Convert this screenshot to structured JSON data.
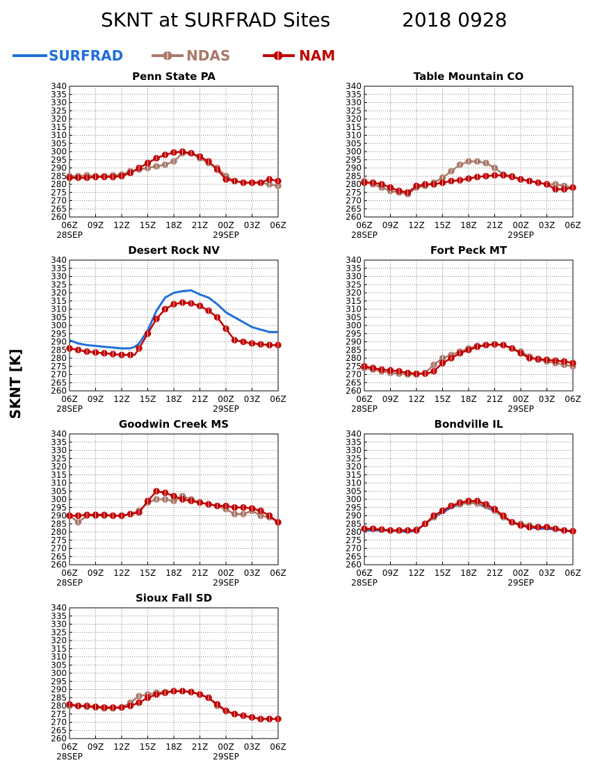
{
  "title": {
    "left": "SKNT at SURFRAD Sites",
    "right": "2018 0928"
  },
  "y_axis_label": "SKNT [K]",
  "legend": [
    {
      "label": "SURFRAD",
      "color": "#1f6fd8",
      "marker": false
    },
    {
      "label": "NDAS",
      "color": "#a9796a",
      "marker": true
    },
    {
      "label": "NAM",
      "color": "#c00000",
      "marker": true
    }
  ],
  "chart_data": [
    {
      "type": "line",
      "title": "Penn State PA",
      "ylim": [
        260,
        340
      ],
      "grid": true,
      "yticks": [
        "260",
        "265",
        "270",
        "275",
        "280",
        "285",
        "290",
        "295",
        "300",
        "305",
        "310",
        "315",
        "320",
        "325",
        "330",
        "335",
        "340"
      ],
      "xticks": [
        "06Z",
        "09Z",
        "12Z",
        "15Z",
        "18Z",
        "21Z",
        "00Z",
        "03Z",
        "06Z"
      ],
      "xdates": [
        "28SEP",
        "29SEP"
      ],
      "series": [
        {
          "name": "NDAS",
          "x": [
            0,
            1,
            2,
            3,
            4,
            5,
            6,
            7,
            8,
            9,
            10,
            11,
            12,
            13,
            14,
            15,
            16,
            17,
            18,
            19,
            20,
            21,
            22,
            23,
            24
          ],
          "y": [
            285,
            285,
            285.5,
            285,
            285,
            285.5,
            286,
            288,
            289,
            290,
            291,
            292,
            294,
            299,
            299,
            296,
            293,
            290,
            285,
            282,
            281,
            281,
            281,
            280,
            279
          ]
        },
        {
          "name": "NAM",
          "x": [
            0,
            1,
            2,
            3,
            4,
            5,
            6,
            7,
            8,
            9,
            10,
            11,
            12,
            13,
            14,
            15,
            16,
            17,
            18,
            19,
            20,
            21,
            22,
            23,
            24
          ],
          "y": [
            284,
            284,
            284,
            284.5,
            284.5,
            284.5,
            285,
            287,
            290,
            293,
            296,
            298,
            299.5,
            300,
            299,
            297,
            294,
            289,
            283,
            282,
            281,
            281,
            281,
            283,
            282
          ]
        }
      ]
    },
    {
      "type": "line",
      "title": "Table Mountain CO",
      "ylim": [
        260,
        340
      ],
      "grid": true,
      "yticks": [
        "260",
        "265",
        "270",
        "275",
        "280",
        "285",
        "290",
        "295",
        "300",
        "305",
        "310",
        "315",
        "320",
        "325",
        "330",
        "335",
        "340"
      ],
      "xticks": [
        "06Z",
        "09Z",
        "12Z",
        "15Z",
        "18Z",
        "21Z",
        "00Z",
        "03Z",
        "06Z"
      ],
      "xdates": [
        "28SEP",
        "29SEP"
      ],
      "series": [
        {
          "name": "NDAS",
          "x": [
            0,
            1,
            2,
            3,
            4,
            5,
            6,
            7,
            8,
            9,
            10,
            11,
            12,
            13,
            14,
            15,
            16,
            17,
            18,
            19,
            20,
            21,
            22,
            23,
            24
          ],
          "y": [
            282,
            280,
            278,
            276,
            275,
            274,
            278,
            279,
            281,
            284,
            288,
            292,
            294,
            294,
            293,
            290,
            286,
            285,
            283,
            282,
            281,
            280,
            280,
            279,
            278
          ]
        },
        {
          "name": "NAM",
          "x": [
            0,
            1,
            2,
            3,
            4,
            5,
            6,
            7,
            8,
            9,
            10,
            11,
            12,
            13,
            14,
            15,
            16,
            17,
            18,
            19,
            20,
            21,
            22,
            23,
            24
          ],
          "y": [
            281,
            281,
            280,
            278,
            276,
            275,
            279,
            280,
            280,
            281,
            282,
            282.5,
            283.5,
            284.5,
            285,
            285.5,
            285.5,
            284.5,
            283,
            282,
            281,
            280,
            277,
            277,
            278
          ]
        }
      ]
    },
    {
      "type": "line",
      "title": "Desert Rock NV",
      "ylim": [
        260,
        340
      ],
      "grid": true,
      "yticks": [
        "260",
        "265",
        "270",
        "275",
        "280",
        "285",
        "290",
        "295",
        "300",
        "305",
        "310",
        "315",
        "320",
        "325",
        "330",
        "335",
        "340"
      ],
      "xticks": [
        "06Z",
        "09Z",
        "12Z",
        "15Z",
        "18Z",
        "21Z",
        "00Z",
        "03Z",
        "06Z"
      ],
      "xdates": [
        "28SEP",
        "29SEP"
      ],
      "series": [
        {
          "name": "SURFRAD",
          "x": [
            0,
            1,
            2,
            3,
            4,
            5,
            6,
            7,
            7.5,
            8,
            9,
            10,
            11,
            12,
            13,
            14,
            15,
            16,
            17,
            18,
            19,
            20,
            21,
            22,
            23,
            24
          ],
          "y": [
            291,
            289,
            288,
            287.5,
            287,
            286.5,
            286,
            286,
            287,
            289,
            297,
            309,
            317,
            320,
            321,
            321.5,
            319,
            317,
            313,
            308,
            305,
            302,
            299,
            297.5,
            296,
            296
          ]
        },
        {
          "name": "NAM",
          "x": [
            0,
            1,
            2,
            3,
            4,
            5,
            6,
            7,
            7.5,
            8,
            9,
            10,
            11,
            12,
            13,
            14,
            15,
            16,
            17,
            18,
            19,
            20,
            21,
            22,
            23,
            24
          ],
          "y": [
            286,
            285,
            284,
            283.5,
            283,
            282.5,
            282,
            282,
            282,
            286,
            295,
            304,
            310,
            313,
            314,
            313.5,
            312,
            309,
            305,
            298,
            291,
            290,
            289,
            288.5,
            288,
            288
          ]
        }
      ]
    },
    {
      "type": "line",
      "title": "Fort Peck MT",
      "ylim": [
        260,
        340
      ],
      "grid": true,
      "yticks": [
        "260",
        "265",
        "270",
        "275",
        "280",
        "285",
        "290",
        "295",
        "300",
        "305",
        "310",
        "315",
        "320",
        "325",
        "330",
        "335",
        "340"
      ],
      "xticks": [
        "06Z",
        "09Z",
        "12Z",
        "15Z",
        "18Z",
        "21Z",
        "00Z",
        "03Z",
        "06Z"
      ],
      "xdates": [
        "28SEP",
        "29SEP"
      ],
      "series": [
        {
          "name": "NDAS",
          "x": [
            0,
            1,
            2,
            3,
            4,
            5,
            6,
            7,
            8,
            9,
            10,
            11,
            12,
            13,
            14,
            15,
            16,
            17,
            18,
            19,
            20,
            21,
            22,
            23,
            24
          ],
          "y": [
            274,
            273,
            272,
            271,
            270.5,
            270,
            270,
            271,
            276,
            280,
            282,
            284,
            286,
            287.5,
            288,
            288.5,
            288,
            286,
            284,
            281,
            279,
            278,
            277,
            276,
            275
          ]
        },
        {
          "name": "NAM",
          "x": [
            0,
            1,
            2,
            3,
            4,
            5,
            6,
            7,
            7.5,
            8,
            9,
            10,
            11,
            12,
            13,
            14,
            15,
            16,
            17,
            18,
            19,
            20,
            21,
            22,
            23,
            24
          ],
          "y": [
            275,
            274,
            273,
            272.5,
            272,
            271,
            270.5,
            270.5,
            271,
            272,
            277,
            280,
            283,
            285,
            287,
            288,
            288.5,
            288,
            286,
            283,
            280,
            279.5,
            279,
            278.5,
            278,
            277
          ]
        }
      ]
    },
    {
      "type": "line",
      "title": "Goodwin Creek MS",
      "ylim": [
        260,
        340
      ],
      "grid": true,
      "yticks": [
        "260",
        "265",
        "270",
        "275",
        "280",
        "285",
        "290",
        "295",
        "300",
        "305",
        "310",
        "315",
        "320",
        "325",
        "330",
        "335",
        "340"
      ],
      "xticks": [
        "06Z",
        "09Z",
        "12Z",
        "15Z",
        "18Z",
        "21Z",
        "00Z",
        "03Z",
        "06Z"
      ],
      "xdates": [
        "28SEP",
        "29SEP"
      ],
      "series": [
        {
          "name": "NDAS",
          "x": [
            0,
            1,
            2,
            3,
            4,
            5,
            6,
            7,
            8,
            9,
            10,
            11,
            12,
            13,
            14,
            15,
            16,
            17,
            18,
            19,
            20,
            21,
            22,
            23,
            24
          ],
          "y": [
            290,
            286,
            290,
            290,
            290,
            290,
            290,
            291,
            293,
            298,
            300,
            300,
            299,
            302,
            300,
            298,
            297,
            296,
            294,
            291,
            291,
            293,
            290,
            289,
            286
          ]
        },
        {
          "name": "NAM",
          "x": [
            0,
            1,
            2,
            3,
            4,
            5,
            6,
            7,
            8,
            9,
            10,
            11,
            12,
            13,
            14,
            15,
            16,
            17,
            18,
            19,
            20,
            21,
            22,
            23,
            24
          ],
          "y": [
            290,
            290,
            290.5,
            290.5,
            290.5,
            290,
            290,
            291,
            292,
            299,
            305,
            304,
            302,
            300,
            299,
            298,
            297,
            296,
            296,
            295,
            295,
            294.5,
            293,
            290,
            286
          ]
        }
      ]
    },
    {
      "type": "line",
      "title": "Bondville IL",
      "ylim": [
        260,
        340
      ],
      "grid": true,
      "yticks": [
        "260",
        "265",
        "270",
        "275",
        "280",
        "285",
        "290",
        "295",
        "300",
        "305",
        "310",
        "315",
        "320",
        "325",
        "330",
        "335",
        "340"
      ],
      "xticks": [
        "06Z",
        "09Z",
        "12Z",
        "15Z",
        "18Z",
        "21Z",
        "00Z",
        "03Z",
        "06Z"
      ],
      "xdates": [
        "28SEP",
        "29SEP"
      ],
      "series": [
        {
          "name": "SURFRAD",
          "x": [
            0,
            1,
            2,
            3,
            4,
            5,
            6,
            7,
            8,
            9,
            10,
            11,
            12,
            13,
            14,
            15,
            16,
            17,
            18,
            19,
            20,
            21,
            22,
            23,
            24
          ],
          "y": [
            281,
            281,
            281,
            281,
            280.5,
            280,
            281,
            285,
            289,
            292,
            295,
            297,
            298,
            297.5,
            295,
            293,
            289,
            286,
            284,
            283,
            282,
            282,
            281.5,
            281,
            280
          ]
        },
        {
          "name": "NDAS",
          "x": [
            0,
            1,
            2,
            3,
            4,
            5,
            6,
            7,
            8,
            9,
            10,
            11,
            12,
            13,
            14,
            15,
            16,
            17,
            18,
            19,
            20,
            21,
            22,
            23,
            24
          ],
          "y": [
            282,
            282,
            281.5,
            281,
            281,
            281,
            281.5,
            285,
            289,
            293,
            296,
            297,
            298,
            297.5,
            296,
            293,
            289,
            286,
            285,
            284,
            283,
            283,
            282,
            281,
            280.5
          ]
        },
        {
          "name": "NAM",
          "x": [
            0,
            1,
            2,
            3,
            4,
            5,
            6,
            7,
            8,
            9,
            10,
            11,
            12,
            13,
            14,
            15,
            16,
            17,
            18,
            19,
            20,
            21,
            22,
            23,
            24
          ],
          "y": [
            282,
            282,
            281.5,
            281,
            281,
            281,
            281,
            285,
            290,
            293,
            296,
            298,
            299,
            299,
            297,
            294,
            290,
            286,
            284,
            283,
            283,
            283,
            282,
            281,
            280.5
          ]
        }
      ]
    },
    {
      "type": "line",
      "title": "Sioux Fall SD",
      "ylim": [
        260,
        340
      ],
      "grid": true,
      "yticks": [
        "260",
        "265",
        "270",
        "275",
        "280",
        "285",
        "290",
        "295",
        "300",
        "305",
        "310",
        "315",
        "320",
        "325",
        "330",
        "335",
        "340"
      ],
      "xticks": [
        "06Z",
        "09Z",
        "12Z",
        "15Z",
        "18Z",
        "21Z",
        "00Z",
        "03Z",
        "06Z"
      ],
      "xdates": [
        "28SEP",
        "29SEP"
      ],
      "series": [
        {
          "name": "NDAS",
          "x": [
            0,
            1,
            2,
            3,
            4,
            5,
            6,
            7,
            8,
            9,
            10,
            11,
            12,
            13,
            14,
            15,
            16,
            17,
            18,
            19,
            20,
            21,
            22,
            23,
            24
          ],
          "y": [
            280,
            280,
            279.5,
            279,
            278.5,
            278.5,
            279,
            282,
            286,
            287,
            288,
            288.5,
            289,
            289,
            288.5,
            287,
            285,
            280,
            277,
            275,
            274,
            273,
            272,
            272,
            272
          ]
        },
        {
          "name": "NAM",
          "x": [
            0,
            1,
            2,
            3,
            4,
            5,
            6,
            7,
            8,
            9,
            10,
            11,
            12,
            13,
            14,
            15,
            16,
            17,
            18,
            19,
            20,
            21,
            22,
            23,
            24
          ],
          "y": [
            281,
            280,
            280,
            279.5,
            279,
            279,
            279,
            280,
            282,
            285,
            287,
            288,
            289,
            289,
            288.5,
            287,
            285,
            281,
            277,
            275,
            274,
            273,
            272,
            272,
            272
          ]
        }
      ]
    }
  ]
}
